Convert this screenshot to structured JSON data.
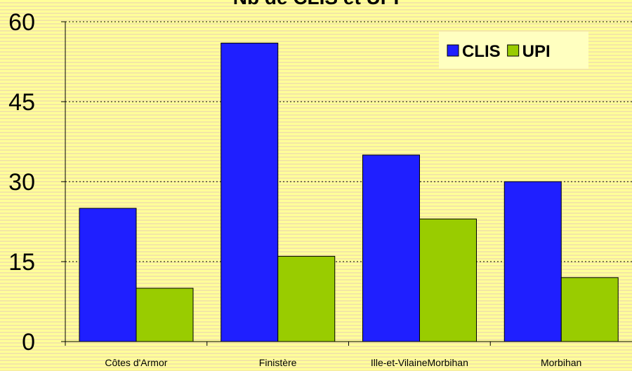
{
  "chart_data": {
    "type": "bar",
    "title": "Nb de CLIS et UPI",
    "categories": [
      "Côtes d'Armor",
      "Finistère",
      "Ille-et-VilaineMorbihan",
      "Morbihan"
    ],
    "series": [
      {
        "name": "CLIS",
        "color": "#1f1fff",
        "values": [
          25,
          56,
          35,
          30
        ]
      },
      {
        "name": "UPI",
        "color": "#99cc00",
        "values": [
          10,
          16,
          23,
          12
        ]
      }
    ],
    "ylim": [
      0,
      60
    ],
    "yticks": [
      0,
      15,
      30,
      45,
      60
    ],
    "grid": true,
    "legend": "top-right"
  }
}
